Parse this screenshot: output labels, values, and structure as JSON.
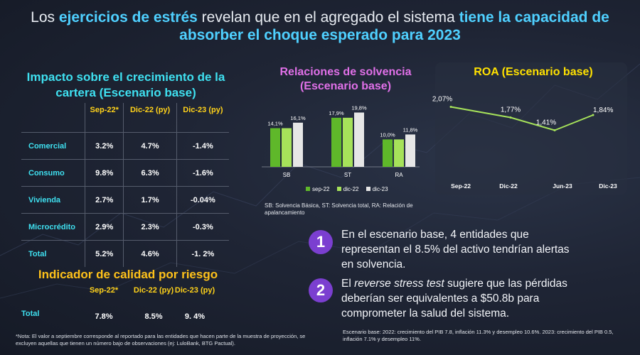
{
  "title": {
    "p1": "Los ",
    "h1": "ejercicios de estrés",
    "p2": " revelan que en el agregado el sistema ",
    "h2": "tiene la capacidad de absorber el choque esperado para 2023"
  },
  "impacto": {
    "title": "Impacto sobre el crecimiento de la cartera (Escenario base)",
    "headers": [
      "Sep-22*",
      "Dic-22 (py)",
      "Dic-23 (py)"
    ],
    "rows": [
      {
        "label": "Comercial",
        "values": [
          "3.2%",
          "4.7%",
          "-1.4%"
        ]
      },
      {
        "label": "Consumo",
        "values": [
          "9.8%",
          "6.3%",
          "-1.6%"
        ]
      },
      {
        "label": "Vivienda",
        "values": [
          "2.7%",
          "1.7%",
          "-0.04%"
        ]
      },
      {
        "label": "Microcrédito",
        "values": [
          "2.9%",
          "2.3%",
          "-0.3%"
        ]
      },
      {
        "label": "Total",
        "values": [
          "5.2%",
          "4.6%",
          "-1. 2%"
        ]
      }
    ]
  },
  "calidad": {
    "title": "Indicador de calidad por riesgo",
    "headers": [
      "Sep-22*",
      "Dic-22 (py)",
      "Dic-23 (py)"
    ],
    "row_label": "Total",
    "values": [
      "7.8%",
      "8.5%",
      "9. 4%"
    ]
  },
  "footnote": "*Nota: El valor a septiembre corresponde al reportado para las entidades que hacen parte de la muestra de proyección, se excluyen aquellas que tienen un número bajo de observaciones (ej: LuloBank, BTG Pactual).",
  "solvencia": {
    "title": "Relaciones de solvencia (Escenario base)",
    "note": "SB: Solvencia Básica, ST: Solvencia total, RA: Relación de apalancamiento"
  },
  "roa": {
    "title": "ROA (Escenario base)"
  },
  "points": [
    {
      "num": "1",
      "text": "En el escenario base, 4 entidades que representan el 8.5% del activo tendrían alertas en solvencia."
    },
    {
      "num": "2",
      "pre": "El ",
      "italic": "reverse stress test",
      "post": " sugiere que las pérdidas deberían ser equivalentes a $50.8b para comprometer la salud del sistema."
    }
  ],
  "scenario_note": "Escenario base: 2022: crecimiento del PIB 7.8, inflación 11.3% y desempleo 10.6%. 2023: crecimiento del PIB 0.5, inflación 7.1% y desempleo 11%.",
  "colors": {
    "accent_blue": "#4fd0ff",
    "cyan": "#3fe0f0",
    "yellow": "#ffd21a",
    "magenta": "#e070e8",
    "purple": "#7b3fd0",
    "green_dark": "#5fb82a",
    "green_light": "#a6e25a",
    "grey_light": "#e6e6e6",
    "roa_line": "#a6e25a"
  },
  "chart_data": [
    {
      "type": "bar",
      "title": "Relaciones de solvencia (Escenario base)",
      "categories": [
        "SB",
        "ST",
        "RA"
      ],
      "series": [
        {
          "name": "sep-22",
          "values": [
            14.1,
            17.9,
            10.0
          ],
          "labels": [
            "14,1%",
            "17,9%",
            "10,0%"
          ]
        },
        {
          "name": "dic-22",
          "values": [
            14.1,
            17.9,
            10.0
          ],
          "labels": [
            "",
            "",
            ""
          ]
        },
        {
          "name": "dic-23",
          "values": [
            16.1,
            19.8,
            11.8
          ],
          "labels": [
            "16,1%",
            "19,8%",
            "11,8%"
          ]
        }
      ],
      "legend": "bottom",
      "grid": false
    },
    {
      "type": "line",
      "title": "ROA (Escenario base)",
      "categories": [
        "Sep-22",
        "Dic-22",
        "Jun-23",
        "Dic-23"
      ],
      "series": [
        {
          "values": [
            2.07,
            1.77,
            1.41,
            1.84
          ],
          "labels": [
            "2,07%",
            "1,77%",
            "1,41%",
            "1,84%"
          ]
        }
      ],
      "grid": false
    }
  ]
}
